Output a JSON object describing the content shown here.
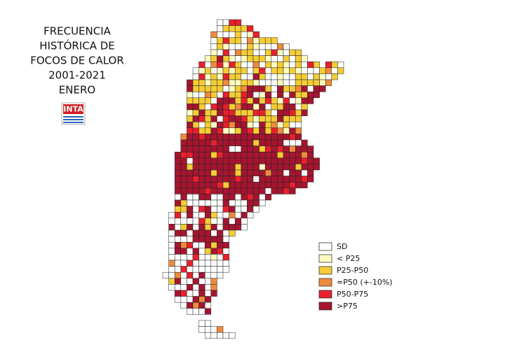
{
  "title": {
    "lines": [
      "FRECUENCIA",
      "HISTÓRICA DE",
      "FOCOS DE CALOR",
      "2001-2021",
      "ENERO"
    ]
  },
  "logo": "INTA",
  "legend": {
    "items": [
      {
        "label": "SD",
        "color": "#ffffff"
      },
      {
        "label": "< P25",
        "color": "#ffffc0"
      },
      {
        "label": "P25-P50",
        "color": "#f5cd34"
      },
      {
        "label": "=P50 (+-10%)",
        "color": "#f08a3c"
      },
      {
        "label": "P50-P75",
        "color": "#e8202e"
      },
      {
        "label": ">P75",
        "color": "#a5152f"
      }
    ]
  }
}
